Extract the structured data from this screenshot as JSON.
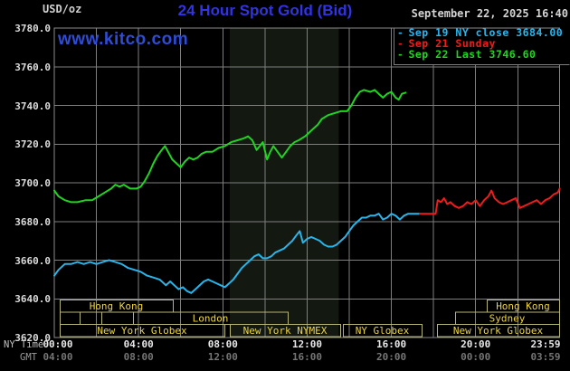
{
  "header": {
    "unit_label": "USD/oz",
    "title": "24 Hour Spot Gold (Bid)",
    "timestamp": "September 22, 2025 16:40",
    "logo_text": "www.kitco.com"
  },
  "axis": {
    "ny_time_label": "NY Time",
    "gmt_label": "GMT"
  },
  "legend": [
    {
      "dash": "-",
      "label": "Sep 19 NY close 3684.00",
      "color_key": "cyan"
    },
    {
      "dash": "-",
      "label": "Sep 21 Sunday",
      "color_key": "red"
    },
    {
      "dash": "-",
      "label": "Sep 22 Last 3746.60",
      "color_key": "green"
    }
  ],
  "colors": {
    "title_blue": "#3232e6",
    "logo_blue": "#2e4cd8",
    "cyan": "#29b5ea",
    "red": "#ee1c1c",
    "green": "#21d421",
    "grid": "#7e7e7e",
    "frame": "#8a8a8a",
    "session_border": "#b5b575",
    "session_text": "#ecd53e",
    "band": "#131810",
    "white_text": "#d4d4d4",
    "tick_white": "#e8e8e8",
    "tick_gray": "#757575"
  },
  "chart_data": {
    "type": "line",
    "title": "24 Hour Spot Gold (Bid)",
    "ylabel": "USD/oz",
    "xlabel": "NY Time / GMT",
    "grid": true,
    "legend_position": "top-right",
    "ylim": [
      3620,
      3780
    ],
    "y_ticks": [
      {
        "value": 3780,
        "label": "3780.0"
      },
      {
        "value": 3760,
        "label": "3760.0"
      },
      {
        "value": 3740,
        "label": "3740.0"
      },
      {
        "value": 3720,
        "label": "3720.0"
      },
      {
        "value": 3700,
        "label": "3700.0"
      },
      {
        "value": 3680,
        "label": "3680.0"
      },
      {
        "value": 3660,
        "label": "3660.0"
      },
      {
        "value": 3640,
        "label": "3640.0"
      },
      {
        "value": 3620,
        "label": "3620.0"
      }
    ],
    "x_ticks": [
      {
        "hour": 0,
        "ny": "00:00",
        "gmt": "04:00"
      },
      {
        "hour": 4,
        "ny": "04:00",
        "gmt": "08:00"
      },
      {
        "hour": 8,
        "ny": "08:00",
        "gmt": "12:00"
      },
      {
        "hour": 12,
        "ny": "12:00",
        "gmt": "16:00"
      },
      {
        "hour": 16,
        "ny": "16:00",
        "gmt": "20:00"
      },
      {
        "hour": 20,
        "ny": "20:00",
        "gmt": "00:00"
      },
      {
        "hour": 23.983,
        "ny": "23:59",
        "gmt": "03:59"
      }
    ],
    "nymex_band_hours": [
      8.33,
      13.5
    ],
    "series": [
      {
        "name": "Sep 19 NY close 3684.00",
        "color_key": "cyan",
        "points": [
          [
            0,
            3652
          ],
          [
            0.2,
            3655
          ],
          [
            0.5,
            3658
          ],
          [
            0.8,
            3658
          ],
          [
            1.1,
            3659
          ],
          [
            1.4,
            3658
          ],
          [
            1.7,
            3659
          ],
          [
            2.0,
            3658
          ],
          [
            2.3,
            3659
          ],
          [
            2.6,
            3660
          ],
          [
            2.9,
            3659
          ],
          [
            3.2,
            3658
          ],
          [
            3.5,
            3656
          ],
          [
            3.8,
            3655
          ],
          [
            4.1,
            3654
          ],
          [
            4.4,
            3652
          ],
          [
            4.7,
            3651
          ],
          [
            5.0,
            3650
          ],
          [
            5.3,
            3647
          ],
          [
            5.5,
            3649
          ],
          [
            5.7,
            3647
          ],
          [
            5.9,
            3645
          ],
          [
            6.1,
            3646
          ],
          [
            6.3,
            3644
          ],
          [
            6.5,
            3643
          ],
          [
            6.7,
            3645
          ],
          [
            6.9,
            3647
          ],
          [
            7.1,
            3649
          ],
          [
            7.3,
            3650
          ],
          [
            7.5,
            3649
          ],
          [
            7.7,
            3648
          ],
          [
            7.9,
            3647
          ],
          [
            8.1,
            3646
          ],
          [
            8.3,
            3648
          ],
          [
            8.5,
            3650
          ],
          [
            8.7,
            3653
          ],
          [
            8.9,
            3656
          ],
          [
            9.1,
            3658
          ],
          [
            9.3,
            3660
          ],
          [
            9.5,
            3662
          ],
          [
            9.7,
            3663
          ],
          [
            9.9,
            3661
          ],
          [
            10.1,
            3661
          ],
          [
            10.3,
            3662
          ],
          [
            10.5,
            3664
          ],
          [
            10.7,
            3665
          ],
          [
            10.9,
            3666
          ],
          [
            11.1,
            3668
          ],
          [
            11.3,
            3670
          ],
          [
            11.5,
            3673
          ],
          [
            11.65,
            3675
          ],
          [
            11.8,
            3669
          ],
          [
            12.0,
            3671
          ],
          [
            12.2,
            3672
          ],
          [
            12.4,
            3671
          ],
          [
            12.6,
            3670
          ],
          [
            12.8,
            3668
          ],
          [
            13.0,
            3667
          ],
          [
            13.2,
            3667
          ],
          [
            13.4,
            3668
          ],
          [
            13.6,
            3670
          ],
          [
            13.8,
            3672
          ],
          [
            14.0,
            3675
          ],
          [
            14.2,
            3678
          ],
          [
            14.4,
            3680
          ],
          [
            14.6,
            3682
          ],
          [
            14.8,
            3682
          ],
          [
            15.0,
            3683
          ],
          [
            15.2,
            3683
          ],
          [
            15.4,
            3684
          ],
          [
            15.6,
            3681
          ],
          [
            15.8,
            3682
          ],
          [
            16.0,
            3684
          ],
          [
            16.2,
            3683
          ],
          [
            16.4,
            3681
          ],
          [
            16.6,
            3683
          ],
          [
            16.8,
            3684
          ],
          [
            17.0,
            3684
          ],
          [
            17.35,
            3684
          ]
        ]
      },
      {
        "name": "Sep 21 Sunday",
        "color_key": "red",
        "points": [
          [
            17.35,
            3684
          ],
          [
            18.1,
            3684
          ],
          [
            18.2,
            3691
          ],
          [
            18.35,
            3690
          ],
          [
            18.5,
            3692
          ],
          [
            18.65,
            3689
          ],
          [
            18.8,
            3690
          ],
          [
            19.0,
            3688
          ],
          [
            19.2,
            3687
          ],
          [
            19.4,
            3688
          ],
          [
            19.6,
            3690
          ],
          [
            19.8,
            3689
          ],
          [
            20.0,
            3691
          ],
          [
            20.2,
            3688
          ],
          [
            20.4,
            3691
          ],
          [
            20.6,
            3693
          ],
          [
            20.75,
            3696
          ],
          [
            20.9,
            3692
          ],
          [
            21.1,
            3690
          ],
          [
            21.3,
            3689
          ],
          [
            21.5,
            3690
          ],
          [
            21.7,
            3691
          ],
          [
            21.9,
            3692
          ],
          [
            22.1,
            3687
          ],
          [
            22.3,
            3688
          ],
          [
            22.5,
            3689
          ],
          [
            22.7,
            3690
          ],
          [
            22.9,
            3691
          ],
          [
            23.1,
            3689
          ],
          [
            23.3,
            3691
          ],
          [
            23.5,
            3692
          ],
          [
            23.7,
            3694
          ],
          [
            23.9,
            3695
          ],
          [
            23.983,
            3697
          ]
        ]
      },
      {
        "name": "Sep 22 Last 3746.60",
        "color_key": "green",
        "points": [
          [
            0,
            3696
          ],
          [
            0.2,
            3693
          ],
          [
            0.5,
            3691
          ],
          [
            0.8,
            3690
          ],
          [
            1.1,
            3690
          ],
          [
            1.5,
            3691
          ],
          [
            1.8,
            3691
          ],
          [
            2.1,
            3693
          ],
          [
            2.4,
            3695
          ],
          [
            2.7,
            3697
          ],
          [
            2.9,
            3699
          ],
          [
            3.1,
            3698
          ],
          [
            3.3,
            3699
          ],
          [
            3.6,
            3697
          ],
          [
            3.9,
            3697
          ],
          [
            4.1,
            3698
          ],
          [
            4.3,
            3701
          ],
          [
            4.5,
            3705
          ],
          [
            4.7,
            3710
          ],
          [
            4.9,
            3714
          ],
          [
            5.1,
            3717
          ],
          [
            5.25,
            3719
          ],
          [
            5.4,
            3716
          ],
          [
            5.6,
            3712
          ],
          [
            5.8,
            3710
          ],
          [
            6.0,
            3708
          ],
          [
            6.2,
            3711
          ],
          [
            6.4,
            3713
          ],
          [
            6.6,
            3712
          ],
          [
            6.8,
            3713
          ],
          [
            7.0,
            3715
          ],
          [
            7.2,
            3716
          ],
          [
            7.5,
            3716
          ],
          [
            7.8,
            3718
          ],
          [
            8.1,
            3719
          ],
          [
            8.4,
            3721
          ],
          [
            8.7,
            3722
          ],
          [
            9.0,
            3723
          ],
          [
            9.2,
            3724
          ],
          [
            9.4,
            3722
          ],
          [
            9.6,
            3717
          ],
          [
            9.75,
            3719
          ],
          [
            9.9,
            3721
          ],
          [
            10.1,
            3712
          ],
          [
            10.25,
            3716
          ],
          [
            10.4,
            3719
          ],
          [
            10.6,
            3716
          ],
          [
            10.8,
            3713
          ],
          [
            11.0,
            3716
          ],
          [
            11.2,
            3719
          ],
          [
            11.4,
            3721
          ],
          [
            11.6,
            3722
          ],
          [
            11.9,
            3724
          ],
          [
            12.2,
            3727
          ],
          [
            12.5,
            3730
          ],
          [
            12.7,
            3733
          ],
          [
            13.0,
            3735
          ],
          [
            13.3,
            3736
          ],
          [
            13.6,
            3737
          ],
          [
            13.9,
            3737
          ],
          [
            14.1,
            3740
          ],
          [
            14.3,
            3744
          ],
          [
            14.5,
            3747
          ],
          [
            14.7,
            3748
          ],
          [
            15.0,
            3747
          ],
          [
            15.2,
            3748
          ],
          [
            15.4,
            3746
          ],
          [
            15.6,
            3744
          ],
          [
            15.8,
            3746
          ],
          [
            16.0,
            3747
          ],
          [
            16.2,
            3744
          ],
          [
            16.35,
            3743
          ],
          [
            16.5,
            3746
          ],
          [
            16.67,
            3746.6
          ]
        ]
      }
    ],
    "sessions": [
      {
        "row": 0,
        "x1": 66,
        "x2": 191,
        "label": "Hong Kong"
      },
      {
        "row": 0,
        "x1": 538,
        "x2": 618,
        "label": "Hong Kong"
      },
      {
        "row": 1,
        "x1": 66,
        "x2": 88,
        "label": ""
      },
      {
        "row": 1,
        "x1": 88,
        "x2": 112,
        "label": ""
      },
      {
        "row": 1,
        "x1": 112,
        "x2": 147,
        "label": ""
      },
      {
        "row": 1,
        "x1": 147,
        "x2": 318,
        "label": "London"
      },
      {
        "row": 1,
        "x1": 503,
        "x2": 618,
        "label": "Sydney"
      },
      {
        "row": 2,
        "x1": 66,
        "x2": 248,
        "label": "New York Globex"
      },
      {
        "row": 2,
        "x1": 254,
        "x2": 376,
        "label": "New York NYMEX"
      },
      {
        "row": 2,
        "x1": 379,
        "x2": 466,
        "label": "NY Globex"
      },
      {
        "row": 2,
        "x1": 483,
        "x2": 618,
        "label": "New York Globex"
      }
    ]
  }
}
